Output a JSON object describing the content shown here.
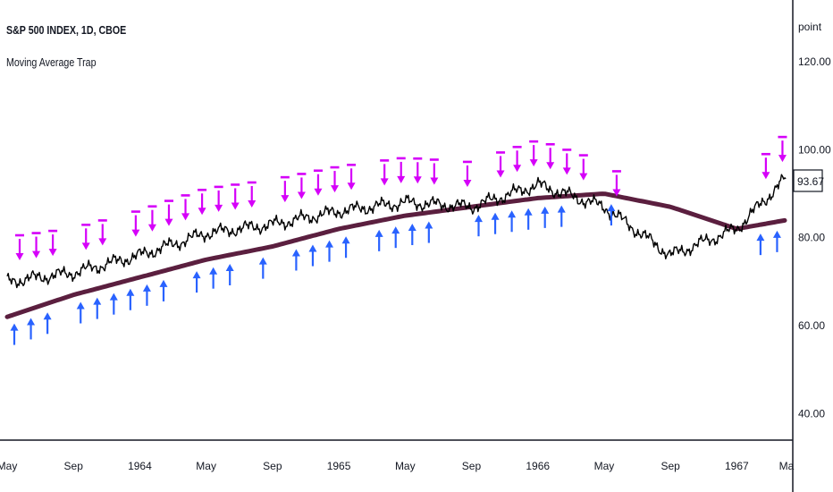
{
  "header": {
    "symbol_line": "S&P 500 INDEX, 1D, CBOE",
    "indicator_line": "Moving Average Trap"
  },
  "colors": {
    "price": "#000000",
    "moving_average": "#5b1f3f",
    "buy_arrow": "#2962ff",
    "sell_arrow": "#d500f9",
    "axis": "#131722"
  },
  "chart_data": {
    "type": "line",
    "ylabel": "point",
    "ylim": [
      34,
      134
    ],
    "y_ticks": [
      "120.00",
      "100.00",
      "80.00",
      "60.00",
      "40.00"
    ],
    "x_ticks": [
      "May",
      "Sep",
      "1964",
      "May",
      "Sep",
      "1965",
      "May",
      "Sep",
      "1966",
      "May",
      "Sep",
      "1967",
      "Ma"
    ],
    "last_value": "93.67",
    "series": [
      {
        "name": "",
        "x_dates": [
          "1963-05",
          "1963-09",
          "1964-01",
          "1964-05",
          "1964-09",
          "1965-01",
          "1965-05",
          "1965-09",
          "1966-01",
          "1966-05",
          "1966-09",
          "1967-01",
          "1967-04"
        ],
        "values": [
          70,
          72,
          76,
          81,
          83,
          86,
          88,
          87,
          92,
          87,
          76,
          82,
          93.67
        ]
      },
      {
        "name": "",
        "x_dates": [
          "1963-05",
          "1963-09",
          "1964-01",
          "1964-05",
          "1964-09",
          "1965-01",
          "1965-05",
          "1965-09",
          "1966-01",
          "1966-05",
          "1966-09",
          "1967-01",
          "1967-04"
        ],
        "values": [
          62,
          67,
          71,
          75,
          78,
          82,
          85,
          87,
          89,
          90,
          87,
          82,
          84
        ]
      }
    ],
    "buy_signals": [
      "1963-05",
      "1963-06",
      "1963-07",
      "1963-09",
      "1963-10",
      "1963-11",
      "1963-12",
      "1964-01",
      "1964-02",
      "1964-04",
      "1964-05",
      "1964-06",
      "1964-08",
      "1964-10",
      "1964-11",
      "1964-12",
      "1965-01",
      "1965-03",
      "1965-04",
      "1965-05",
      "1965-06",
      "1965-09",
      "1965-10",
      "1965-11",
      "1965-12",
      "1966-01",
      "1966-02",
      "1966-05",
      "1967-02",
      "1967-03"
    ],
    "sell_signals": [
      "1963-05",
      "1963-06",
      "1963-07",
      "1963-09",
      "1963-10",
      "1963-12",
      "1964-01",
      "1964-02",
      "1964-03",
      "1964-04",
      "1964-05",
      "1964-06",
      "1964-07",
      "1964-09",
      "1964-10",
      "1964-11",
      "1964-12",
      "1965-01",
      "1965-03",
      "1965-04",
      "1965-05",
      "1965-06",
      "1965-08",
      "1965-10",
      "1965-11",
      "1965-12",
      "1966-01",
      "1966-02",
      "1966-03",
      "1966-05",
      "1967-02",
      "1967-03"
    ]
  }
}
